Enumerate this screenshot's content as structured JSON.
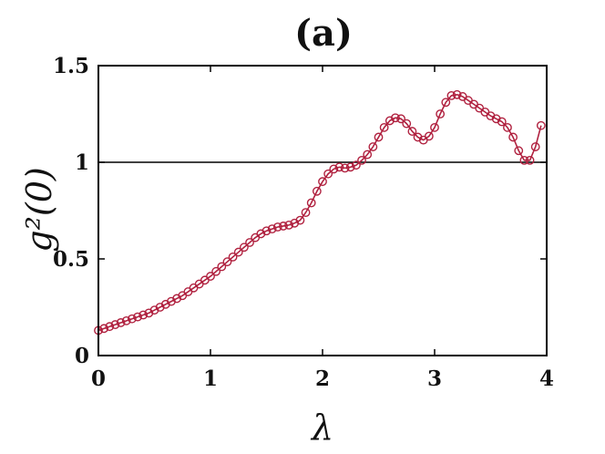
{
  "chart_data": {
    "type": "line",
    "title": "(a)",
    "xlabel": "λ",
    "ylabel": "g²(0)",
    "xlim": [
      0,
      4
    ],
    "ylim": [
      0,
      1.5
    ],
    "xticks": [
      0,
      1,
      2,
      3,
      4
    ],
    "xtick_labels": [
      "0",
      "1",
      "2",
      "3",
      "4"
    ],
    "yticks": [
      0,
      0.5,
      1,
      1.5
    ],
    "ytick_labels": [
      "0",
      "0.5",
      "1",
      "1.5"
    ],
    "reference_line": {
      "y": 1,
      "color": "#000000"
    },
    "grid": false,
    "legend": "none",
    "series_color": "#b0213f",
    "marker": "open-circle",
    "series": [
      {
        "x": [
          0.0,
          0.05,
          0.1,
          0.15,
          0.2,
          0.25,
          0.3,
          0.35,
          0.4,
          0.45,
          0.5,
          0.55,
          0.6,
          0.65,
          0.7,
          0.75,
          0.8,
          0.85,
          0.9,
          0.95,
          1.0,
          1.05,
          1.1,
          1.15,
          1.2,
          1.25,
          1.3,
          1.35,
          1.4,
          1.45,
          1.5,
          1.55,
          1.6,
          1.65,
          1.7,
          1.75,
          1.8,
          1.85,
          1.9,
          1.95,
          2.0,
          2.05,
          2.1,
          2.15,
          2.2,
          2.25,
          2.3,
          2.35,
          2.4,
          2.45,
          2.5,
          2.55,
          2.6,
          2.65,
          2.7,
          2.75,
          2.8,
          2.85,
          2.9,
          2.95,
          3.0,
          3.05,
          3.1,
          3.15,
          3.2,
          3.25,
          3.3,
          3.35,
          3.4,
          3.45,
          3.5,
          3.55,
          3.6,
          3.65,
          3.7,
          3.75,
          3.8,
          3.85,
          3.9,
          3.95
        ],
        "values": [
          0.13,
          0.14,
          0.15,
          0.16,
          0.17,
          0.18,
          0.19,
          0.2,
          0.21,
          0.22,
          0.235,
          0.25,
          0.265,
          0.28,
          0.295,
          0.31,
          0.33,
          0.35,
          0.37,
          0.39,
          0.41,
          0.435,
          0.46,
          0.485,
          0.51,
          0.535,
          0.56,
          0.585,
          0.61,
          0.63,
          0.645,
          0.655,
          0.665,
          0.67,
          0.675,
          0.685,
          0.7,
          0.74,
          0.79,
          0.85,
          0.9,
          0.94,
          0.965,
          0.975,
          0.97,
          0.975,
          0.985,
          1.01,
          1.04,
          1.08,
          1.13,
          1.18,
          1.215,
          1.23,
          1.225,
          1.2,
          1.16,
          1.13,
          1.115,
          1.135,
          1.18,
          1.25,
          1.31,
          1.345,
          1.35,
          1.34,
          1.32,
          1.3,
          1.28,
          1.26,
          1.24,
          1.225,
          1.21,
          1.18,
          1.13,
          1.06,
          1.01,
          1.01,
          1.08,
          1.19
        ]
      }
    ]
  }
}
